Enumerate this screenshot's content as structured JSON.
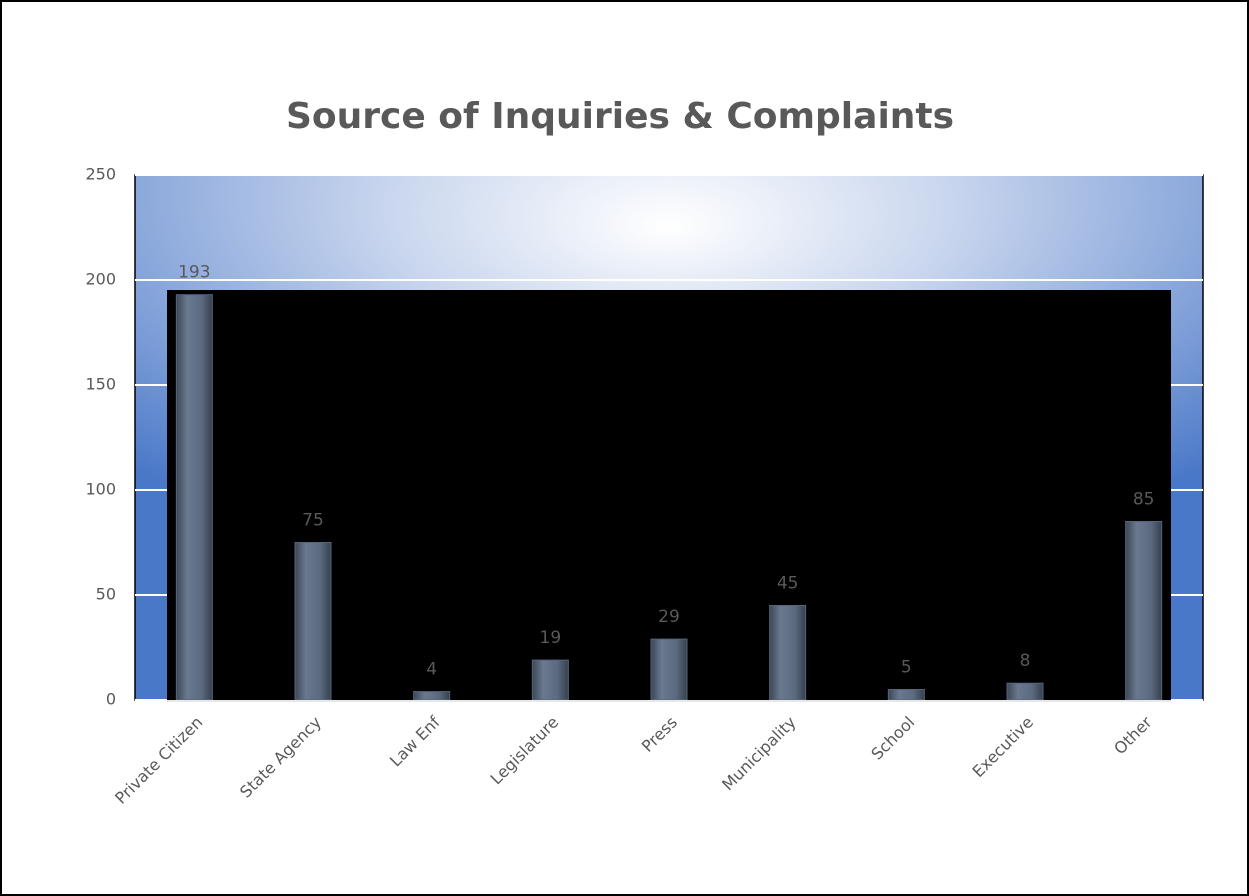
{
  "chart_data": {
    "type": "bar",
    "title": "Source of Inquiries & Complaints",
    "categories": [
      "Private Citizen",
      "State Agency",
      "Law Enf",
      "Legislature",
      "Press",
      "Municipality",
      "School",
      "Executive",
      "Other"
    ],
    "values": [
      193,
      75,
      4,
      19,
      29,
      45,
      5,
      8,
      85
    ],
    "color": "#56657a",
    "ylim": [
      0,
      250
    ],
    "yticks": [
      0,
      50,
      100,
      150,
      200,
      250
    ],
    "grid": true
  }
}
